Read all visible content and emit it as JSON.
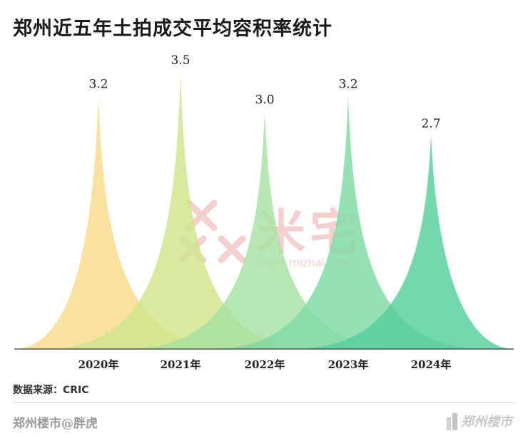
{
  "colors": {
    "peaks": [
      "#f8dc8a",
      "#cfe58a",
      "#a6e0a0",
      "#7fdaa4",
      "#56cf9e"
    ],
    "axis": "#555555",
    "watermark": "#f0a8a8"
  },
  "chart_data": {
    "type": "area",
    "title": "郑州近五年土拍成交平均容积率统计",
    "categories": [
      "2020年",
      "2021年",
      "2022年",
      "2023年",
      "2024年"
    ],
    "values": [
      3.2,
      3.5,
      3.0,
      3.2,
      2.7
    ],
    "value_labels": [
      "3.2",
      "3.5",
      "3.0",
      "3.2",
      "2.7"
    ],
    "xlabel": "",
    "ylabel": "",
    "ylim": [
      0,
      3.5
    ],
    "grid": false,
    "legend": "none"
  },
  "source": "数据来源：CRIC",
  "watermark": {
    "brand": "米宅",
    "url": "www.mizhai.com"
  },
  "footer": {
    "author": "郑州楼市@胖虎",
    "logo_text": "郑州楼市",
    "logo_icon": "building-icon"
  }
}
